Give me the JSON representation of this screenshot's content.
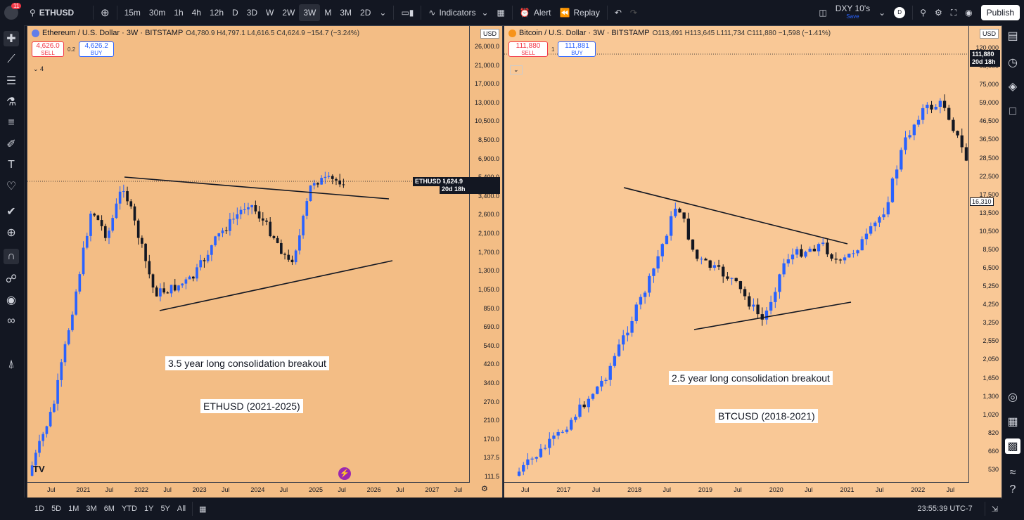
{
  "topbar": {
    "notif_count": "11",
    "symbol": "ETHUSD",
    "intervals": [
      "15m",
      "30m",
      "1h",
      "4h",
      "12h",
      "D",
      "3D",
      "W",
      "2W",
      "3W",
      "M",
      "3M",
      "2D"
    ],
    "selected_interval": "3W",
    "indicators_label": "Indicators",
    "alert_label": "Alert",
    "replay_label": "Replay",
    "layout_name": "DXY 10's",
    "layout_sub": "Save",
    "avatar_letter": "D",
    "publish_label": "Publish"
  },
  "left_chart": {
    "title": "Ethereum / U.S. Dollar · 3W · BITSTAMP",
    "ohlc": "O4,780.9 H4,797.1 L4,616.5 C4,624.9 −154.7 (−3.24%)",
    "sell_price": "4,626.0",
    "sell_label": "SELL",
    "spread": "0.2",
    "buy_price": "4,626.2",
    "buy_label": "BUY",
    "indicators_count": "4",
    "currency": "USD",
    "price_tag_symbol": "ETHUSD",
    "price_tag_price": "4,624.9",
    "price_tag_time": "20d 18h",
    "y_ticks": [
      "26,000.0",
      "21,000.0",
      "17,000.0",
      "13,000.0",
      "10,500.0",
      "8,500.0",
      "6,900.0",
      "5,400.0",
      "3,400.0",
      "2,600.0",
      "2,100.0",
      "1,700.0",
      "1,300.0",
      "1,050.0",
      "850.0",
      "690.0",
      "540.0",
      "420.0",
      "340.0",
      "270.0",
      "210.0",
      "170.0",
      "137.5",
      "111.5"
    ],
    "x_ticks": [
      "Jul",
      "2021",
      "Jul",
      "2022",
      "Jul",
      "2023",
      "Jul",
      "2024",
      "Jul",
      "2025",
      "Jul",
      "2026",
      "Jul",
      "2027",
      "Jul"
    ],
    "annotation_1": "3.5 year long consolidation breakout",
    "annotation_2": "ETHUSD (2021-2025)",
    "logo": "TV"
  },
  "right_chart": {
    "title": "Bitcoin / U.S. Dollar · 3W · BITSTAMP",
    "ohlc": "O113,491 H113,645 L111,734 C111,880 −1,598 (−1.41%)",
    "sell_price": "111,880",
    "sell_label": "SELL",
    "spread": "1",
    "buy_price": "111,881",
    "buy_label": "BUY",
    "currency": "USD",
    "price_tag_price": "111,880",
    "price_tag_time": "20d 18h",
    "last_tag": "16,310",
    "y_ticks": [
      "120,000",
      "95,000",
      "75,000",
      "59,000",
      "46,500",
      "36,500",
      "28,500",
      "22,500",
      "17,500",
      "13,500",
      "10,500",
      "8,500",
      "6,500",
      "5,250",
      "4,250",
      "3,250",
      "2,550",
      "2,050",
      "1,650",
      "1,300",
      "1,020",
      "820",
      "660",
      "530"
    ],
    "x_ticks": [
      "Jul",
      "2017",
      "Jul",
      "2018",
      "Jul",
      "2019",
      "Jul",
      "2020",
      "Jul",
      "2021",
      "Jul",
      "2022",
      "Jul"
    ],
    "annotation_1": "2.5 year long consolidation breakout",
    "annotation_2": "BTCUSD (2018-2021)"
  },
  "bottombar": {
    "ranges": [
      "1D",
      "5D",
      "1M",
      "3M",
      "6M",
      "YTD",
      "1Y",
      "5Y",
      "All"
    ],
    "clock": "23:55:39 UTC-7"
  },
  "colors": {
    "up": "#2962ff",
    "down": "#131722",
    "eth_bg": "#f3bd85",
    "btc_bg": "#f9c896"
  }
}
